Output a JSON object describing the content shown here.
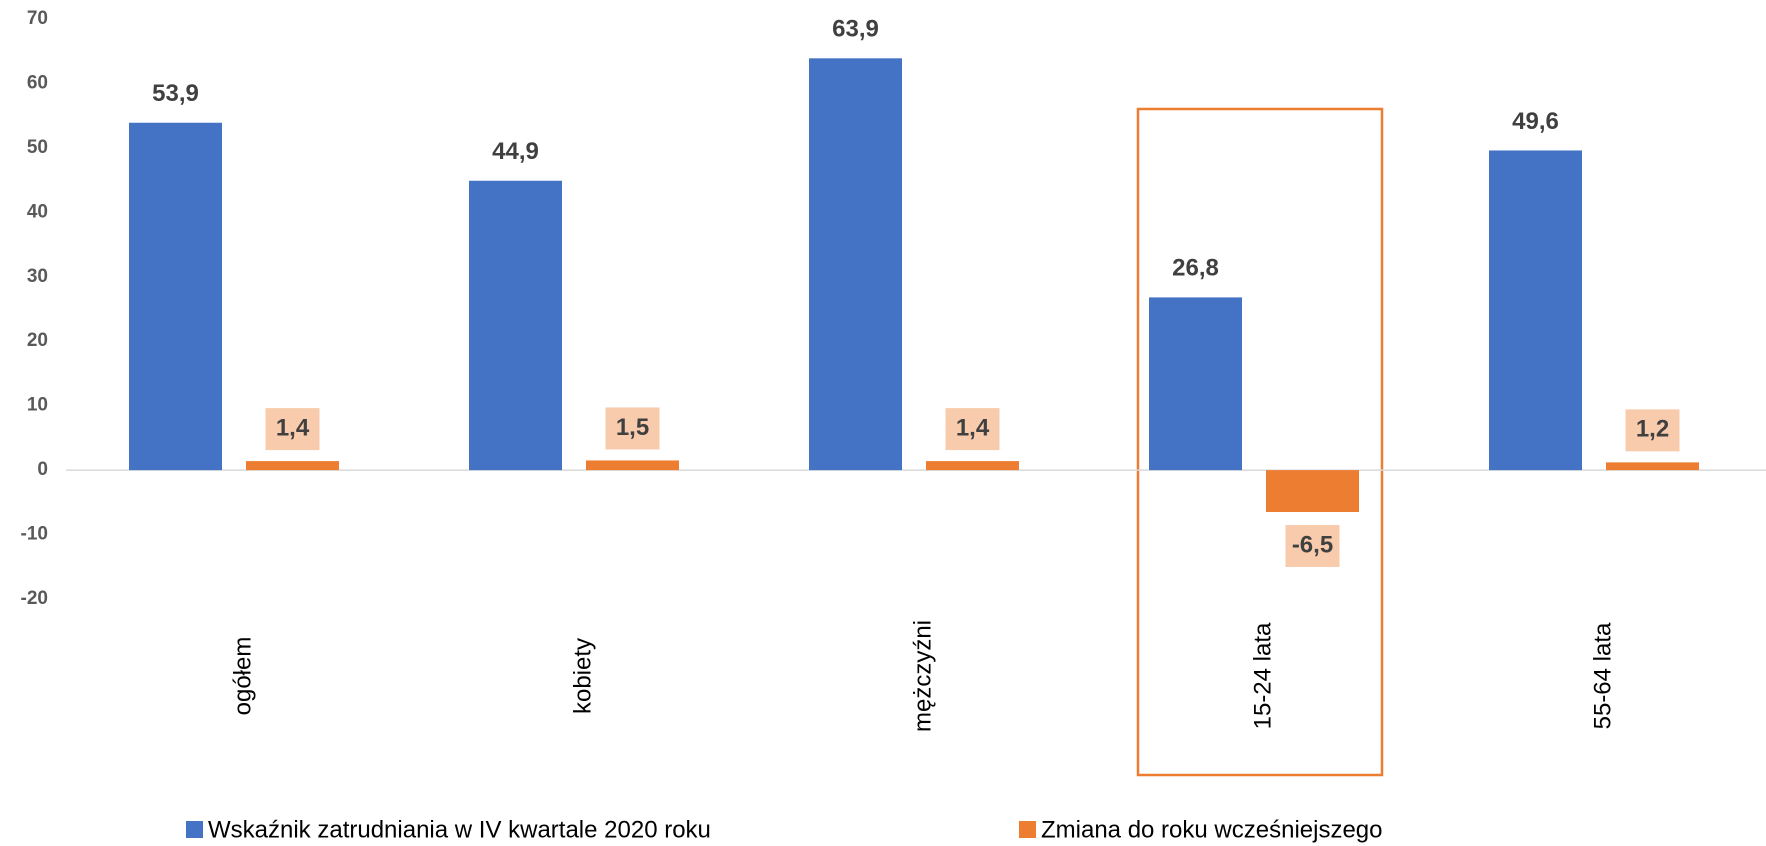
{
  "chart_data": {
    "type": "bar",
    "categories": [
      "ogółem",
      "kobiety",
      "mężczyźni",
      "15-24 lata",
      "55-64 lata"
    ],
    "series": [
      {
        "name": "Wskaźnik zatrudniania w IV kwartale 2020 roku",
        "color": "#4472c4",
        "values": [
          53.9,
          44.9,
          63.9,
          26.8,
          49.6
        ],
        "value_labels": [
          "53,9",
          "44,9",
          "63,9",
          "26,8",
          "49,6"
        ]
      },
      {
        "name": "Zmiana do roku wcześniejszego",
        "color": "#ed7d31",
        "values": [
          1.4,
          1.5,
          1.4,
          -6.5,
          1.2
        ],
        "value_labels": [
          "1,4",
          "1,5",
          "1,4",
          "-6,5",
          "1,2"
        ]
      }
    ],
    "ylim": [
      -20,
      70
    ],
    "yticks": [
      -20,
      -10,
      0,
      10,
      20,
      30,
      40,
      50,
      60,
      70
    ],
    "grid": false,
    "legend": "bottom"
  }
}
